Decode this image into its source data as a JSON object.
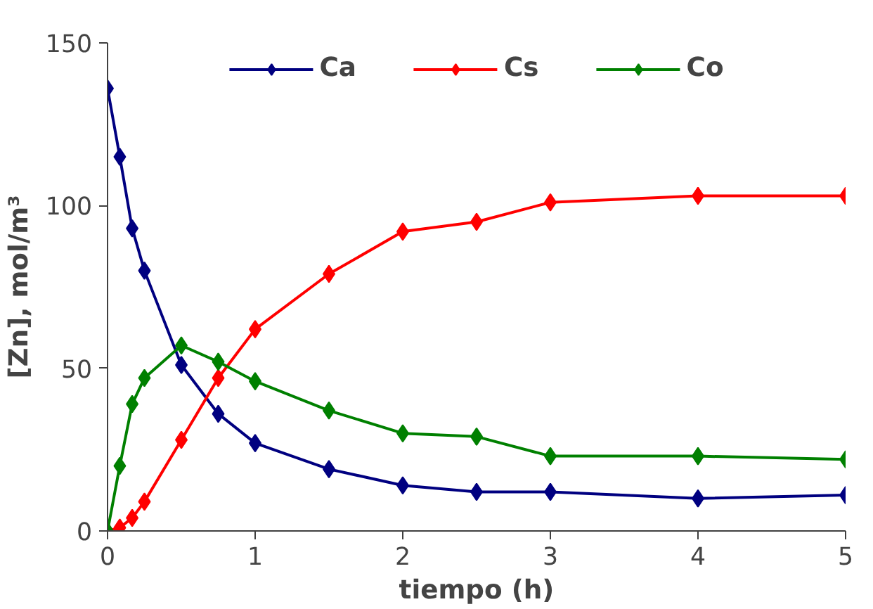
{
  "chart_data": {
    "type": "line",
    "xlabel": "tiempo (h)",
    "ylabel": "[Zn], mol/m³",
    "x": [
      0,
      0.083,
      0.167,
      0.25,
      0.5,
      0.75,
      1,
      1.5,
      2,
      2.5,
      3,
      4,
      5
    ],
    "series": [
      {
        "name": "Ca",
        "color": "#000080",
        "values": [
          136,
          115,
          93,
          80,
          51,
          36,
          27,
          19,
          14,
          12,
          12,
          10,
          11
        ]
      },
      {
        "name": "Cs",
        "color": "#ff0000",
        "values": [
          0,
          1,
          4,
          9,
          28,
          47,
          62,
          79,
          92,
          95,
          101,
          103,
          103
        ]
      },
      {
        "name": "Co",
        "color": "#008000",
        "values": [
          0,
          20,
          39,
          47,
          57,
          52,
          46,
          37,
          30,
          29,
          23,
          23,
          22
        ]
      }
    ],
    "xlim": [
      0,
      5
    ],
    "ylim": [
      0,
      150
    ],
    "xticks": [
      0,
      1,
      2,
      3,
      4,
      5
    ],
    "yticks": [
      0,
      50,
      100,
      150
    ],
    "grid": false,
    "legend": "top",
    "marker": "diamond",
    "line_style": "solid"
  }
}
